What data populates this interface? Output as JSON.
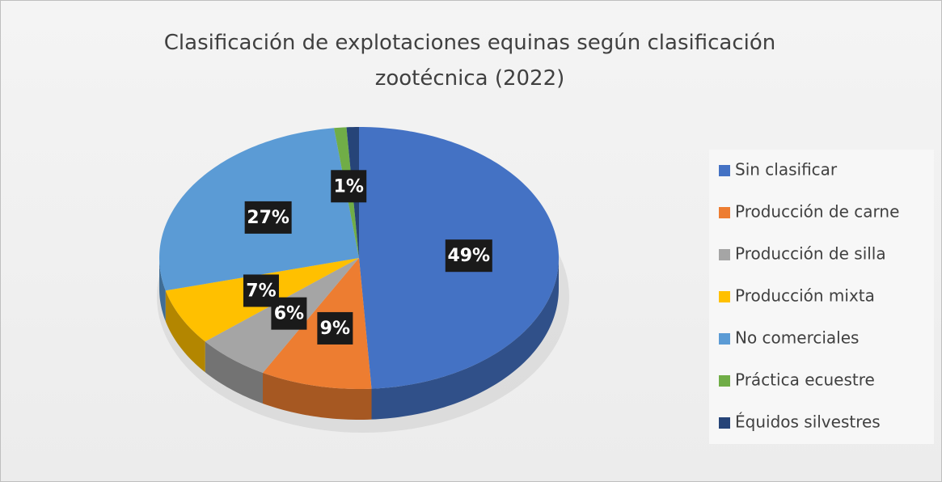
{
  "chart_data": {
    "type": "pie",
    "title": "Clasificación de explotaciones equinas según clasificación zootécnica (2022)",
    "categories": [
      "Sin clasificar",
      "Producción de carne",
      "Producción de silla",
      "Producción mixta",
      "No comerciales",
      "Práctica ecuestre",
      "Équidos silvestres"
    ],
    "values": [
      49,
      9,
      6,
      7,
      27,
      1,
      1
    ],
    "value_labels": [
      "49%",
      "9%",
      "6%",
      "7%",
      "27%",
      "1%",
      null
    ],
    "colors": [
      "#4472c4",
      "#ed7d31",
      "#a5a5a5",
      "#ffc000",
      "#5b9bd5",
      "#70ad47",
      "#264478"
    ],
    "legend": "right"
  }
}
